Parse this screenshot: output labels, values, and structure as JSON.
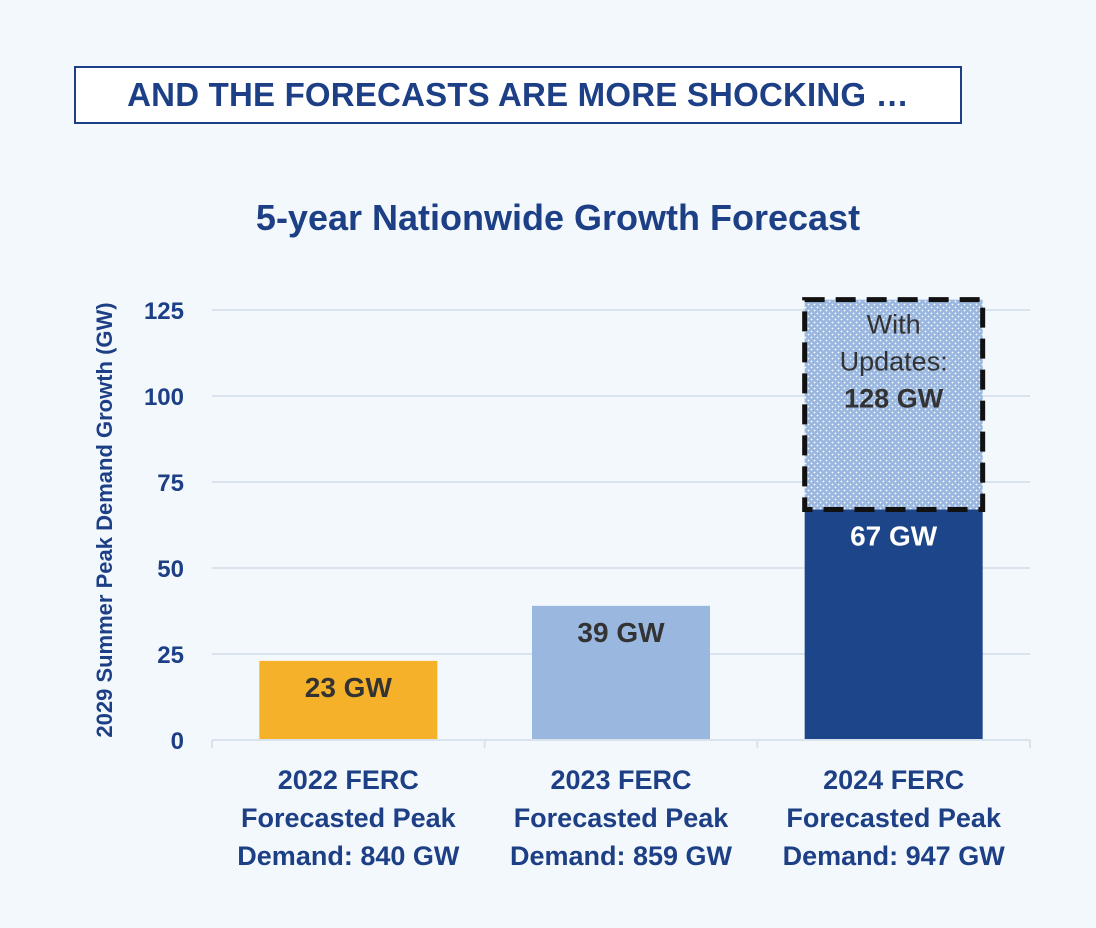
{
  "banner": {
    "text": "AND THE FORECASTS ARE MORE SHOCKING …"
  },
  "colors": {
    "background": "#f3f8fc",
    "text": "#1d3f85",
    "gridline": "#d8e3ee",
    "label_dark": "#333333",
    "label_light": "#ffffff",
    "bar_2022": "#f5b12a",
    "bar_2023": "#9ab7df",
    "bar_2024": "#1d4589",
    "bar_2024_updates": "#9ab7df"
  },
  "chart_data": {
    "type": "bar",
    "stacked": true,
    "title": "5-year Nationwide Growth Forecast",
    "xlabel": "",
    "ylabel": "2029 Summer Peak Demand Growth (GW)",
    "ylim": [
      0,
      130
    ],
    "yticks": [
      0,
      25,
      50,
      75,
      100,
      125
    ],
    "grid": true,
    "categories": [
      [
        "2022 FERC",
        "Forecasted Peak",
        "Demand: 840 GW"
      ],
      [
        "2023 FERC",
        "Forecasted Peak",
        "Demand: 859 GW"
      ],
      [
        "2024 FERC",
        "Forecasted Peak",
        "Demand: 947 GW"
      ]
    ],
    "bars": [
      {
        "category_index": 0,
        "base": 0,
        "value": 23,
        "label": "23 GW",
        "color_key": "bar_2022",
        "label_color_key": "label_dark",
        "style": "solid"
      },
      {
        "category_index": 1,
        "base": 0,
        "value": 39,
        "label": "39 GW",
        "color_key": "bar_2023",
        "label_color_key": "label_dark",
        "style": "solid"
      },
      {
        "category_index": 2,
        "base": 0,
        "value": 67,
        "label": "67 GW",
        "color_key": "bar_2024",
        "label_color_key": "label_light",
        "style": "solid"
      },
      {
        "category_index": 2,
        "base": 67,
        "value": 128,
        "label_lines": [
          "With",
          "Updates:",
          "128 GW"
        ],
        "color_key": "bar_2024_updates",
        "label_color_key": "label_dark",
        "style": "dotted-dashed"
      }
    ]
  }
}
